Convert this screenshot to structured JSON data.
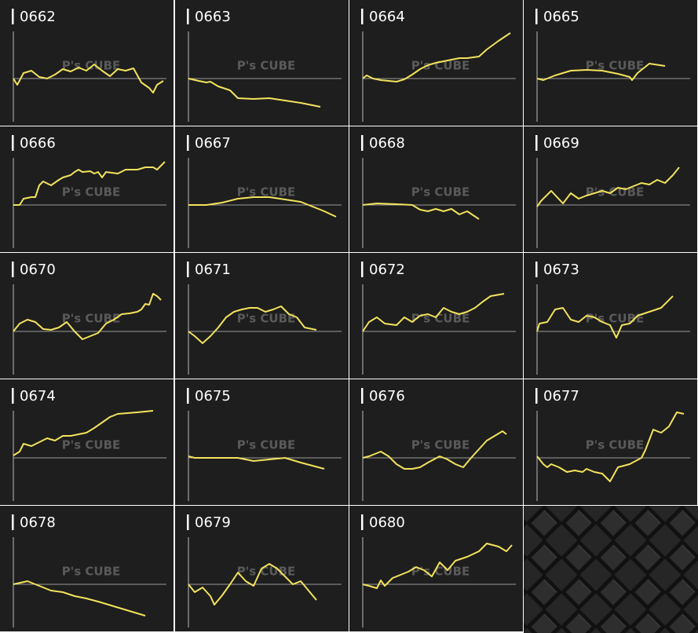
{
  "watermark": "P's CUBE",
  "chart_data": [
    {
      "type": "line",
      "title": "0662",
      "color": "#f2e35c",
      "xlim": [
        0,
        195
      ],
      "ylim": [
        -55,
        65
      ],
      "x": [
        0,
        5,
        13,
        23,
        33,
        43,
        53,
        63,
        73,
        83,
        93,
        103,
        113,
        123,
        133,
        143,
        153,
        163,
        173,
        178,
        183,
        191
      ],
      "values": [
        0,
        -8,
        7,
        10,
        2,
        0,
        5,
        12,
        9,
        14,
        10,
        18,
        10,
        3,
        12,
        10,
        13,
        -5,
        -12,
        -18,
        -8,
        -3
      ]
    },
    {
      "type": "line",
      "title": "0663",
      "color": "#f2e35c",
      "xlim": [
        0,
        195
      ],
      "ylim": [
        -55,
        65
      ],
      "x": [
        0,
        13,
        23,
        28,
        38,
        53,
        63,
        83,
        103,
        123,
        143,
        168
      ],
      "values": [
        0,
        -3,
        -5,
        -4,
        -10,
        -15,
        -25,
        -26,
        -25,
        -28,
        -31,
        -36
      ]
    },
    {
      "type": "line",
      "title": "0664",
      "color": "#f2e35c",
      "xlim": [
        0,
        195
      ],
      "ylim": [
        -55,
        65
      ],
      "x": [
        0,
        5,
        13,
        23,
        33,
        43,
        53,
        63,
        73,
        83,
        93,
        103,
        113,
        123,
        133,
        148,
        158,
        173,
        188
      ],
      "values": [
        0,
        4,
        0,
        -2,
        -3,
        -4,
        -1,
        5,
        12,
        17,
        20,
        22,
        24,
        26,
        26,
        28,
        37,
        48,
        58
      ]
    },
    {
      "type": "line",
      "title": "0665",
      "color": "#f2e35c",
      "xlim": [
        0,
        195
      ],
      "ylim": [
        -55,
        65
      ],
      "x": [
        0,
        8,
        23,
        43,
        63,
        83,
        103,
        118,
        121,
        128,
        143,
        163
      ],
      "values": [
        0,
        -2,
        4,
        10,
        11,
        10,
        6,
        2,
        -2,
        7,
        19,
        16
      ]
    },
    {
      "type": "line",
      "title": "0666",
      "color": "#f2e35c",
      "xlim": [
        0,
        195
      ],
      "ylim": [
        -55,
        65
      ],
      "x": [
        0,
        8,
        13,
        23,
        28,
        33,
        38,
        48,
        58,
        63,
        73,
        78,
        83,
        88,
        98,
        103,
        108,
        113,
        118,
        133,
        143,
        158,
        168,
        178,
        183,
        193
      ],
      "values": [
        0,
        0,
        8,
        10,
        10,
        25,
        30,
        25,
        32,
        35,
        38,
        42,
        45,
        42,
        43,
        40,
        42,
        35,
        42,
        40,
        45,
        45,
        48,
        48,
        45,
        55
      ]
    },
    {
      "type": "line",
      "title": "0667",
      "color": "#f2e35c",
      "xlim": [
        0,
        195
      ],
      "ylim": [
        -55,
        65
      ],
      "x": [
        0,
        23,
        43,
        63,
        83,
        103,
        123,
        143,
        158,
        173,
        188
      ],
      "values": [
        0,
        0,
        3,
        8,
        10,
        10,
        7,
        4,
        -2,
        -8,
        -15
      ]
    },
    {
      "type": "line",
      "title": "0668",
      "color": "#f2e35c",
      "xlim": [
        0,
        195
      ],
      "ylim": [
        -55,
        65
      ],
      "x": [
        0,
        18,
        43,
        63,
        73,
        83,
        93,
        103,
        113,
        123,
        133,
        148
      ],
      "values": [
        0,
        2,
        1,
        0,
        -6,
        -8,
        -5,
        -8,
        -5,
        -12,
        -8,
        -18
      ]
    },
    {
      "type": "line",
      "title": "0669",
      "color": "#f2e35c",
      "xlim": [
        0,
        195
      ],
      "ylim": [
        -55,
        65
      ],
      "x": [
        0,
        5,
        18,
        33,
        43,
        53,
        63,
        73,
        83,
        93,
        103,
        113,
        123,
        133,
        143,
        153,
        163,
        173,
        181
      ],
      "values": [
        -2,
        5,
        18,
        2,
        15,
        8,
        12,
        15,
        18,
        15,
        22,
        20,
        24,
        28,
        26,
        32,
        28,
        38,
        48
      ]
    },
    {
      "type": "line",
      "title": "0670",
      "color": "#f2e35c",
      "xlim": [
        0,
        195
      ],
      "ylim": [
        -55,
        65
      ],
      "x": [
        0,
        8,
        18,
        28,
        38,
        48,
        58,
        68,
        78,
        88,
        98,
        108,
        118,
        128,
        138,
        148,
        158,
        163,
        168,
        173,
        178,
        183,
        188
      ],
      "values": [
        0,
        10,
        15,
        12,
        3,
        2,
        5,
        12,
        0,
        -10,
        -6,
        -2,
        10,
        15,
        22,
        23,
        25,
        28,
        35,
        34,
        48,
        45,
        40
      ]
    },
    {
      "type": "line",
      "title": "0671",
      "color": "#f2e35c",
      "xlim": [
        0,
        195
      ],
      "ylim": [
        -55,
        65
      ],
      "x": [
        0,
        8,
        18,
        28,
        38,
        48,
        58,
        68,
        78,
        88,
        98,
        108,
        118,
        128,
        138,
        148,
        163
      ],
      "values": [
        0,
        -6,
        -15,
        -6,
        5,
        18,
        25,
        28,
        30,
        30,
        25,
        28,
        32,
        22,
        18,
        5,
        2
      ]
    },
    {
      "type": "line",
      "title": "0672",
      "color": "#f2e35c",
      "xlim": [
        0,
        195
      ],
      "ylim": [
        -55,
        65
      ],
      "x": [
        0,
        8,
        18,
        28,
        43,
        53,
        63,
        73,
        83,
        93,
        103,
        113,
        123,
        133,
        143,
        153,
        163,
        180
      ],
      "values": [
        0,
        12,
        18,
        10,
        8,
        18,
        12,
        20,
        22,
        18,
        30,
        25,
        22,
        25,
        30,
        38,
        45,
        48
      ]
    },
    {
      "type": "line",
      "title": "0673",
      "color": "#f2e35c",
      "xlim": [
        0,
        195
      ],
      "ylim": [
        -55,
        65
      ],
      "x": [
        0,
        3,
        13,
        23,
        33,
        43,
        53,
        63,
        73,
        83,
        93,
        101,
        108,
        118,
        128,
        143,
        158,
        173
      ],
      "values": [
        0,
        10,
        12,
        28,
        30,
        15,
        12,
        20,
        18,
        12,
        8,
        -8,
        8,
        10,
        20,
        25,
        30,
        45
      ]
    },
    {
      "type": "line",
      "title": "0674",
      "color": "#f2e35c",
      "xlim": [
        0,
        195
      ],
      "ylim": [
        -55,
        65
      ],
      "x": [
        0,
        8,
        13,
        23,
        33,
        43,
        53,
        63,
        73,
        83,
        93,
        103,
        113,
        123,
        133,
        158,
        178
      ],
      "values": [
        3,
        8,
        18,
        15,
        20,
        25,
        22,
        28,
        28,
        30,
        32,
        38,
        45,
        52,
        56,
        58,
        60
      ]
    },
    {
      "type": "line",
      "title": "0675",
      "color": "#f2e35c",
      "xlim": [
        0,
        195
      ],
      "ylim": [
        -55,
        65
      ],
      "x": [
        0,
        8,
        43,
        63,
        83,
        103,
        123,
        143,
        173
      ],
      "values": [
        2,
        0,
        0,
        0,
        -4,
        -2,
        0,
        -6,
        -14
      ]
    },
    {
      "type": "line",
      "title": "0676",
      "color": "#f2e35c",
      "xlim": [
        0,
        195
      ],
      "ylim": [
        -55,
        65
      ],
      "x": [
        0,
        8,
        23,
        33,
        43,
        53,
        63,
        73,
        83,
        98,
        108,
        118,
        128,
        138,
        158,
        178,
        183
      ],
      "values": [
        0,
        2,
        8,
        2,
        -8,
        -14,
        -14,
        -12,
        -6,
        2,
        -2,
        -8,
        -12,
        0,
        22,
        34,
        30
      ]
    },
    {
      "type": "line",
      "title": "0677",
      "color": "#f2e35c",
      "xlim": [
        0,
        195
      ],
      "ylim": [
        -55,
        65
      ],
      "x": [
        0,
        8,
        13,
        18,
        28,
        38,
        48,
        58,
        63,
        73,
        83,
        93,
        103,
        118,
        133,
        138,
        148,
        158,
        168,
        178,
        187
      ],
      "values": [
        2,
        -8,
        -12,
        -8,
        -12,
        -18,
        -16,
        -18,
        -14,
        -18,
        -20,
        -30,
        -12,
        -8,
        0,
        10,
        36,
        32,
        40,
        58,
        56
      ]
    },
    {
      "type": "line",
      "title": "0678",
      "color": "#f2e35c",
      "xlim": [
        0,
        195
      ],
      "ylim": [
        -55,
        65
      ],
      "x": [
        0,
        18,
        33,
        48,
        63,
        78,
        93,
        108,
        128,
        148,
        168
      ],
      "values": [
        0,
        4,
        -2,
        -8,
        -10,
        -15,
        -18,
        -22,
        -28,
        -34,
        -40
      ]
    },
    {
      "type": "line",
      "title": "0679",
      "color": "#f2e35c",
      "xlim": [
        0,
        195
      ],
      "ylim": [
        -55,
        65
      ],
      "x": [
        0,
        8,
        18,
        28,
        33,
        43,
        53,
        63,
        73,
        83,
        93,
        103,
        113,
        123,
        133,
        143,
        153,
        163
      ],
      "values": [
        0,
        -10,
        -4,
        -15,
        -26,
        -14,
        0,
        15,
        4,
        -2,
        20,
        26,
        20,
        10,
        0,
        4,
        -8,
        -20
      ]
    },
    {
      "type": "line",
      "title": "0680",
      "color": "#f2e35c",
      "xlim": [
        0,
        195
      ],
      "ylim": [
        -55,
        65
      ],
      "x": [
        0,
        8,
        18,
        23,
        28,
        38,
        48,
        58,
        68,
        78,
        88,
        98,
        108,
        118,
        133,
        148,
        158,
        173,
        183,
        190
      ],
      "values": [
        0,
        -2,
        -5,
        5,
        -2,
        8,
        12,
        16,
        22,
        18,
        10,
        28,
        18,
        30,
        35,
        42,
        52,
        48,
        42,
        50
      ]
    }
  ]
}
